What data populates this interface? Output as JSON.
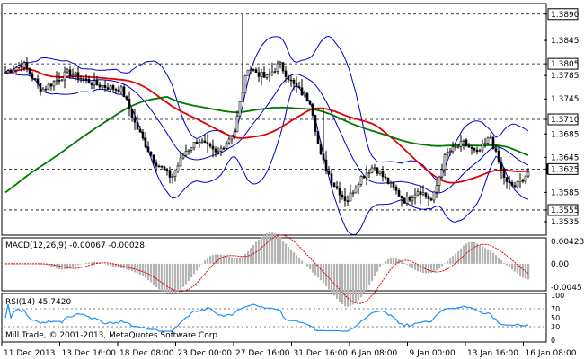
{
  "chart_data": [
    {
      "type": "candlestick",
      "title": "",
      "price_labels": [
        "1.3890",
        "1.3845",
        "1.3805",
        "1.3785",
        "1.3745",
        "1.3710",
        "1.3685",
        "1.3645",
        "1.3625",
        "1.3585",
        "1.3555",
        "1.3535"
      ],
      "highlighted_levels": [
        1.389,
        1.3805,
        1.371,
        1.3625,
        1.3555
      ],
      "time_labels": [
        "11 Dec 2013",
        "13 Dec 16:00",
        "18 Dec 08:00",
        "23 Dec 00:00",
        "27 Dec 16:00",
        "31 Dec 16:00",
        "6 Jan 08:00",
        "9 Jan 00:00",
        "13 Jan 16:00",
        "16 Jan 08:00"
      ],
      "ylim": [
        1.3515,
        1.3905
      ],
      "series": [
        {
          "color": "#0000cc",
          "values": []
        },
        {
          "name": "",
          "color": "#e00000"
        },
        {
          "name": "",
          "color": "#007700"
        }
      ]
    },
    {
      "type": "bar",
      "title": "MACD(12,26,9) -0.00067 -0.00028",
      "tick_labels": [
        "0.00423",
        "0.00",
        "-0.0045"
      ],
      "ylim": [
        -0.0048,
        0.0046
      ]
    },
    {
      "type": "line",
      "title": "RSI(14) 45.7420",
      "tick_labels": [
        "100",
        "70",
        "50",
        "30",
        "0"
      ],
      "ylim": [
        0,
        100
      ]
    }
  ],
  "footer": {
    "copyright": "Mill Trade, © 2001-2013, MetaQuotes Software Corp."
  }
}
